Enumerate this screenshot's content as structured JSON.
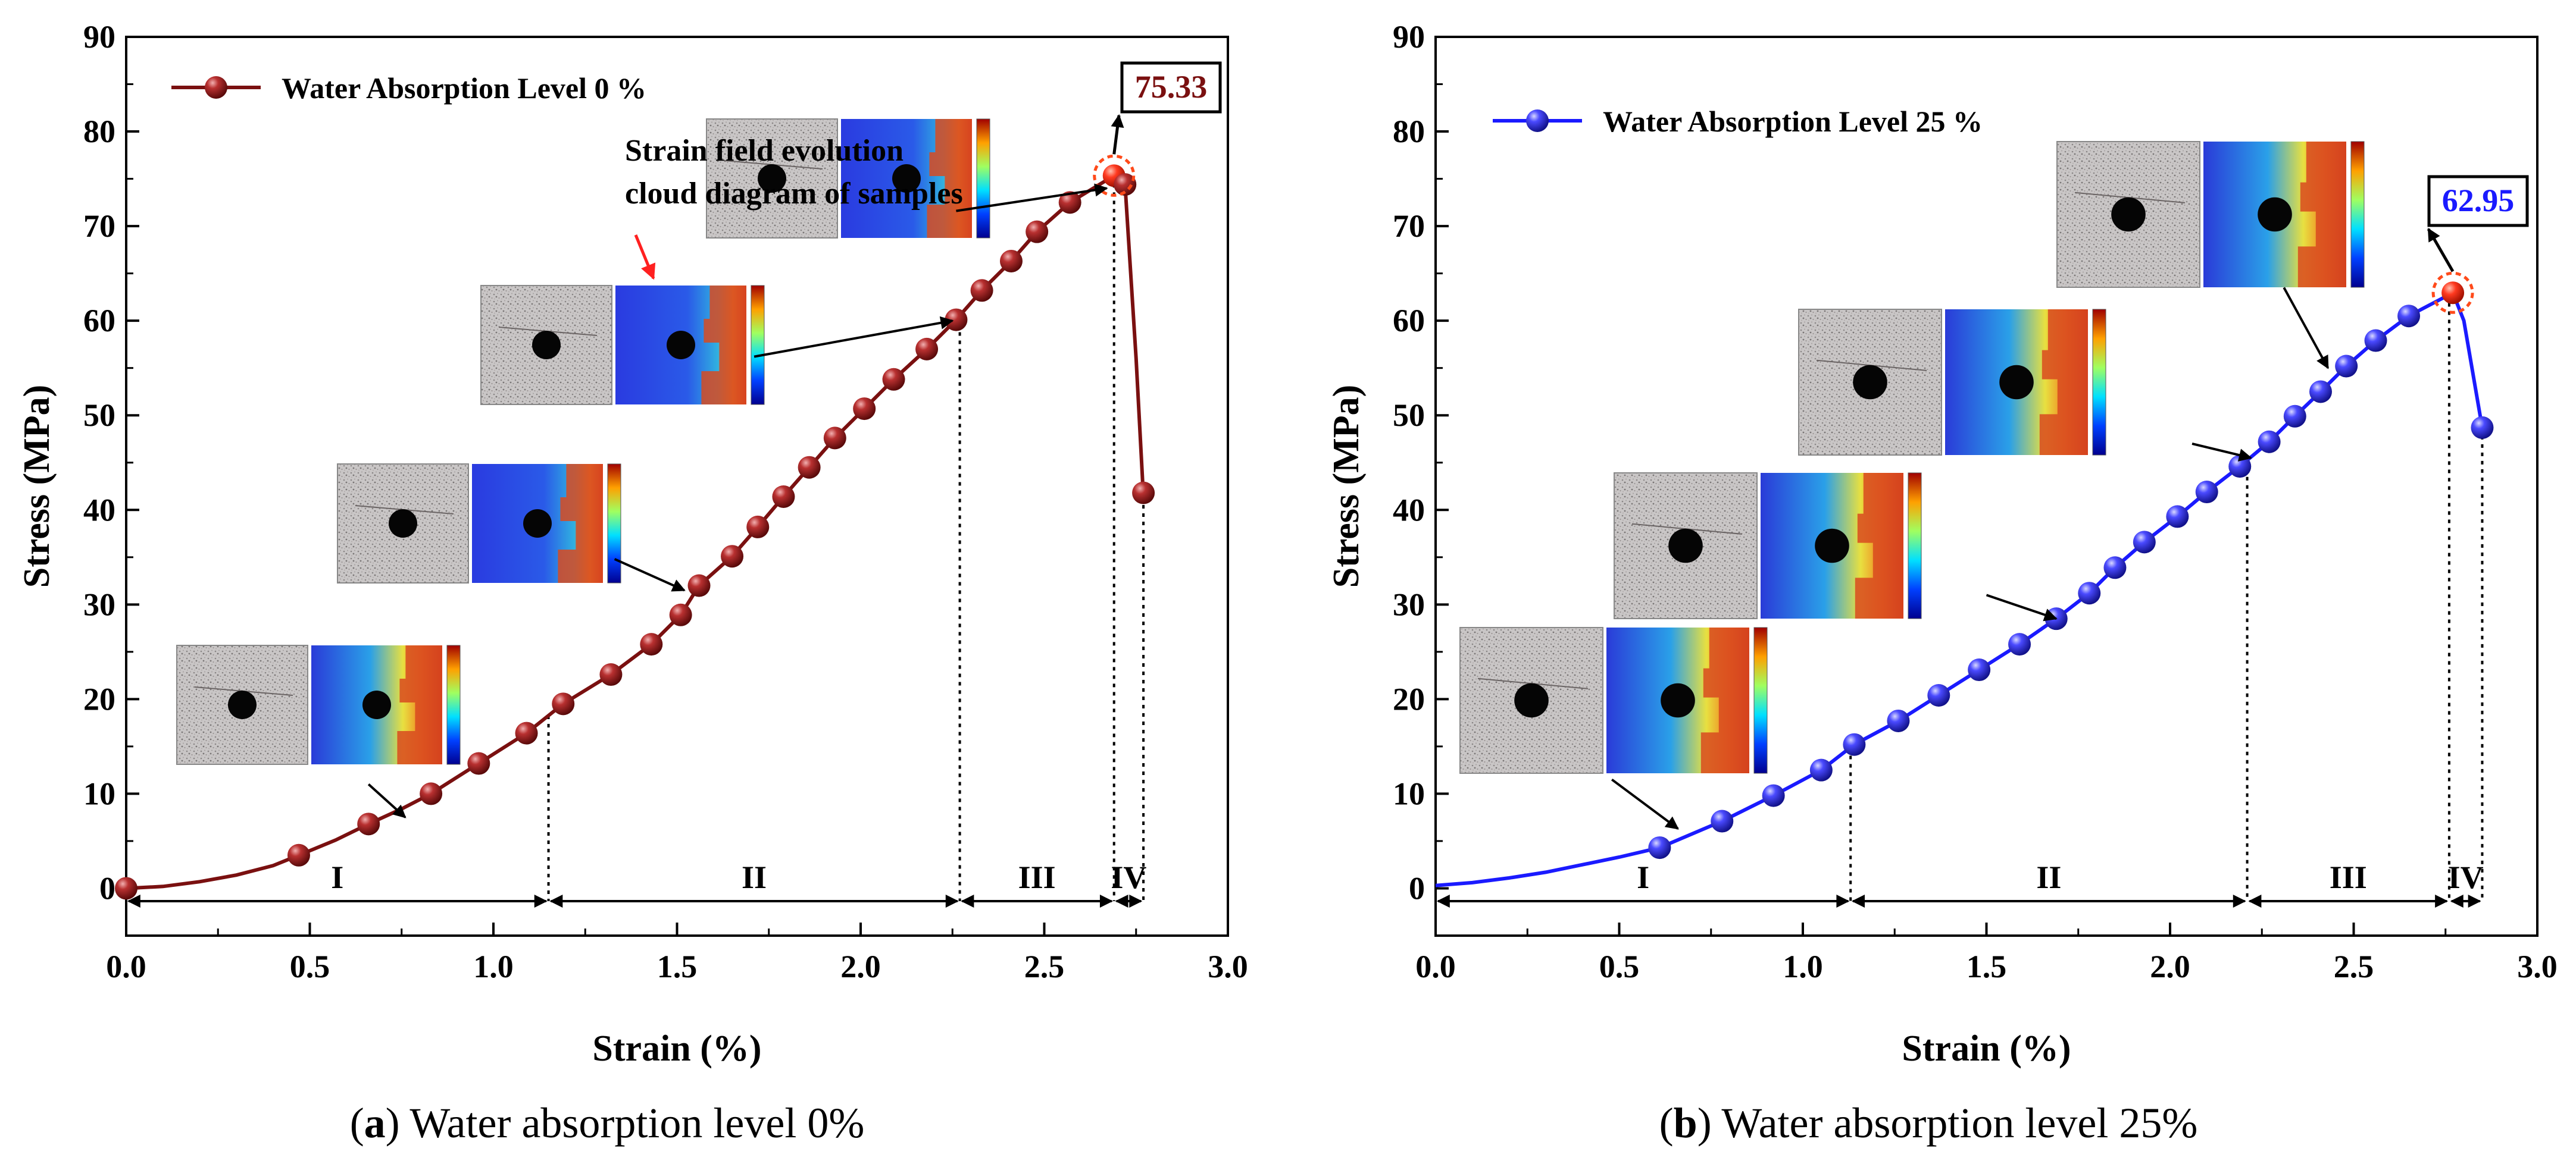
{
  "chart_data": [
    {
      "id": "a",
      "type": "line",
      "xlabel": "Strain (%)",
      "ylabel": "Stress (MPa)",
      "xlim": [
        0,
        3.0
      ],
      "ylim": [
        -5,
        90
      ],
      "xticks": [
        0.0,
        0.5,
        1.0,
        1.5,
        2.0,
        2.5,
        3.0
      ],
      "yticks": [
        0,
        10,
        20,
        30,
        40,
        50,
        60,
        70,
        80,
        90
      ],
      "xtick_labels": [
        "0.0",
        "0.5",
        "1.0",
        "1.5",
        "2.0",
        "2.5",
        "3.0"
      ],
      "ytick_labels": [
        "0",
        "10",
        "20",
        "30",
        "40",
        "50",
        "60",
        "70",
        "80",
        "90"
      ],
      "series": [
        {
          "name": "Water Absorption Level 0 %",
          "color": "#7a1010",
          "marker_color": "#a02020",
          "curve": [
            [
              0,
              0
            ],
            [
              0.1,
              0.2
            ],
            [
              0.2,
              0.7
            ],
            [
              0.3,
              1.4
            ],
            [
              0.4,
              2.4
            ],
            [
              0.47,
              3.5
            ],
            [
              0.57,
              5.1
            ],
            [
              0.66,
              6.8
            ],
            [
              0.75,
              8.4
            ],
            [
              0.83,
              10.0
            ],
            [
              0.96,
              13.2
            ],
            [
              1.09,
              16.4
            ],
            [
              1.19,
              19.5
            ],
            [
              1.32,
              22.6
            ],
            [
              1.43,
              25.8
            ],
            [
              1.51,
              28.9
            ],
            [
              1.56,
              32.0
            ],
            [
              1.65,
              35.1
            ],
            [
              1.72,
              38.2
            ],
            [
              1.79,
              41.4
            ],
            [
              1.86,
              44.5
            ],
            [
              1.93,
              47.6
            ],
            [
              2.01,
              50.7
            ],
            [
              2.09,
              53.8
            ],
            [
              2.18,
              57.0
            ],
            [
              2.26,
              60.1
            ],
            [
              2.33,
              63.2
            ],
            [
              2.41,
              66.3
            ],
            [
              2.48,
              69.4
            ],
            [
              2.57,
              72.5
            ],
            [
              2.69,
              75.33
            ],
            [
              2.72,
              74.4
            ],
            [
              2.75,
              56.0
            ],
            [
              2.77,
              41.4
            ]
          ],
          "markers": [
            [
              0,
              0
            ],
            [
              0.47,
              3.5
            ],
            [
              0.66,
              6.8
            ],
            [
              0.83,
              10.0
            ],
            [
              0.96,
              13.2
            ],
            [
              1.09,
              16.4
            ],
            [
              1.19,
              19.5
            ],
            [
              1.32,
              22.6
            ],
            [
              1.43,
              25.8
            ],
            [
              1.51,
              28.9
            ],
            [
              1.56,
              32.0
            ],
            [
              1.65,
              35.1
            ],
            [
              1.72,
              38.2
            ],
            [
              1.79,
              41.4
            ],
            [
              1.86,
              44.5
            ],
            [
              1.93,
              47.6
            ],
            [
              2.01,
              50.7
            ],
            [
              2.09,
              53.8
            ],
            [
              2.18,
              57.0
            ],
            [
              2.26,
              60.1
            ],
            [
              2.33,
              63.2
            ],
            [
              2.41,
              66.3
            ],
            [
              2.48,
              69.4
            ],
            [
              2.57,
              72.5
            ],
            [
              2.69,
              75.33
            ],
            [
              2.72,
              74.4
            ],
            [
              2.77,
              41.8
            ]
          ],
          "peak": {
            "x": 2.69,
            "y": 75.33,
            "label": "75.33"
          }
        }
      ],
      "stage_boundaries": [
        1.15,
        2.27,
        2.69,
        2.77
      ],
      "stages": [
        {
          "label": "I",
          "from": 0.0,
          "to": 1.15
        },
        {
          "label": "II",
          "from": 1.15,
          "to": 2.27
        },
        {
          "label": "III",
          "from": 2.27,
          "to": 2.69
        },
        {
          "label": "IV",
          "from": 2.69,
          "to": 2.77
        }
      ],
      "annotation": [
        "Strain field evolution",
        "cloud diagram of samples"
      ],
      "caption": {
        "letter": "a",
        "text": " Water absorption level 0%"
      }
    },
    {
      "id": "b",
      "type": "line",
      "xlabel": "Strain (%)",
      "ylabel": "Stress (MPa)",
      "xlim": [
        0,
        3.0
      ],
      "ylim": [
        -5,
        90
      ],
      "xticks": [
        0.0,
        0.5,
        1.0,
        1.5,
        2.0,
        2.5,
        3.0
      ],
      "yticks": [
        0,
        10,
        20,
        30,
        40,
        50,
        60,
        70,
        80,
        90
      ],
      "xtick_labels": [
        "0.0",
        "0.5",
        "1.0",
        "1.5",
        "2.0",
        "2.5",
        "3.0"
      ],
      "ytick_labels": [
        "0",
        "10",
        "20",
        "30",
        "40",
        "50",
        "60",
        "70",
        "80",
        "90"
      ],
      "series": [
        {
          "name": "Water Absorption Level 25 %",
          "color": "#1a1aff",
          "marker_color": "#3b3bff",
          "curve": [
            [
              0,
              0.3
            ],
            [
              0.1,
              0.6
            ],
            [
              0.2,
              1.1
            ],
            [
              0.3,
              1.7
            ],
            [
              0.4,
              2.5
            ],
            [
              0.5,
              3.3
            ],
            [
              0.61,
              4.3
            ],
            [
              0.78,
              7.1
            ],
            [
              0.92,
              9.8
            ],
            [
              1.05,
              12.5
            ],
            [
              1.14,
              15.2
            ],
            [
              1.26,
              17.7
            ],
            [
              1.37,
              20.4
            ],
            [
              1.48,
              23.1
            ],
            [
              1.59,
              25.8
            ],
            [
              1.69,
              28.5
            ],
            [
              1.78,
              31.2
            ],
            [
              1.85,
              33.9
            ],
            [
              1.93,
              36.6
            ],
            [
              2.02,
              39.3
            ],
            [
              2.1,
              41.9
            ],
            [
              2.19,
              44.6
            ],
            [
              2.27,
              47.2
            ],
            [
              2.34,
              49.9
            ],
            [
              2.41,
              52.5
            ],
            [
              2.48,
              55.2
            ],
            [
              2.56,
              57.9
            ],
            [
              2.65,
              60.5
            ],
            [
              2.77,
              62.95
            ],
            [
              2.8,
              60.0
            ],
            [
              2.85,
              48.7
            ]
          ],
          "markers": [
            [
              0.61,
              4.3
            ],
            [
              0.78,
              7.1
            ],
            [
              0.92,
              9.8
            ],
            [
              1.05,
              12.5
            ],
            [
              1.14,
              15.2
            ],
            [
              1.26,
              17.7
            ],
            [
              1.37,
              20.4
            ],
            [
              1.48,
              23.1
            ],
            [
              1.59,
              25.8
            ],
            [
              1.69,
              28.5
            ],
            [
              1.78,
              31.2
            ],
            [
              1.85,
              33.9
            ],
            [
              1.93,
              36.6
            ],
            [
              2.02,
              39.3
            ],
            [
              2.1,
              41.9
            ],
            [
              2.19,
              44.6
            ],
            [
              2.27,
              47.2
            ],
            [
              2.34,
              49.9
            ],
            [
              2.41,
              52.5
            ],
            [
              2.48,
              55.2
            ],
            [
              2.56,
              57.9
            ],
            [
              2.65,
              60.5
            ],
            [
              2.77,
              62.95
            ],
            [
              2.85,
              48.7
            ]
          ],
          "peak": {
            "x": 2.77,
            "y": 62.95,
            "label": "62.95"
          }
        }
      ],
      "stage_boundaries": [
        1.13,
        2.21,
        2.76,
        2.85
      ],
      "stages": [
        {
          "label": "I",
          "from": 0.0,
          "to": 1.13
        },
        {
          "label": "II",
          "from": 1.13,
          "to": 2.21
        },
        {
          "label": "III",
          "from": 2.21,
          "to": 2.76
        },
        {
          "label": "IV",
          "from": 2.76,
          "to": 2.85
        }
      ],
      "caption": {
        "letter": "b",
        "text": " Water absorption level 25%"
      }
    }
  ],
  "colors": {
    "axis": "#000000",
    "stage_arrow": "#000000",
    "peak_highlight": "#ff4a1a",
    "annotation_arrow": "#ff2020"
  }
}
